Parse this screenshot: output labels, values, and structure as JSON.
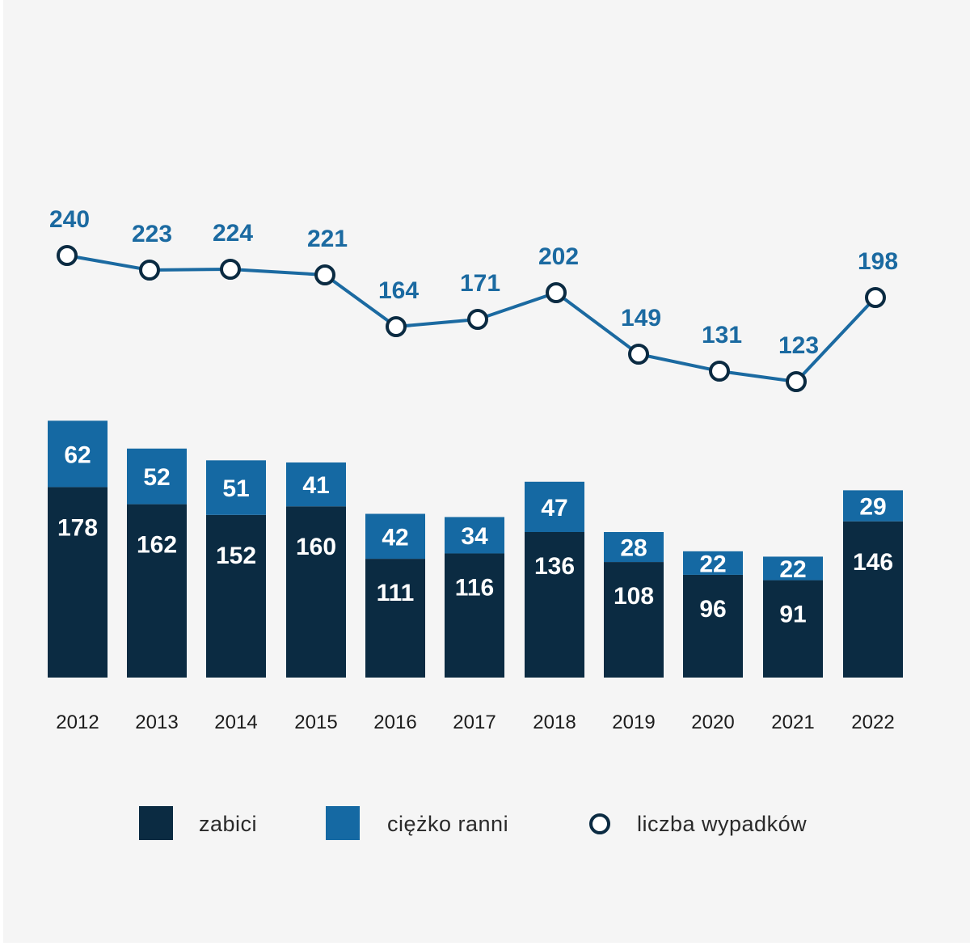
{
  "colors": {
    "killed": "#0b2b42",
    "seriously_injured": "#1569a3",
    "line": "#1b6aa1",
    "marker_stroke": "#0b2b42",
    "marker_fill": "#ffffff",
    "background": "#f5f5f5"
  },
  "chart_data": {
    "type": "bar",
    "stacked": true,
    "categories": [
      "2012",
      "2013",
      "2014",
      "2015",
      "2016",
      "2017",
      "2018",
      "2019",
      "2020",
      "2021",
      "2022"
    ],
    "series": [
      {
        "name": "zabici",
        "kind": "bar",
        "values": [
          178,
          162,
          152,
          160,
          111,
          116,
          136,
          108,
          96,
          91,
          146
        ]
      },
      {
        "name": "ciężko ranni",
        "kind": "bar",
        "values": [
          62,
          52,
          51,
          41,
          42,
          34,
          47,
          28,
          22,
          22,
          29
        ]
      },
      {
        "name": "liczba wypadków",
        "kind": "line",
        "values": [
          240,
          223,
          224,
          221,
          164,
          171,
          202,
          149,
          131,
          123,
          198
        ]
      }
    ],
    "legend": {
      "position": "bottom",
      "items": [
        "zabici",
        "ciężko ranni",
        "liczba wypadków"
      ]
    },
    "grid": false,
    "y_axis_visible": false
  }
}
